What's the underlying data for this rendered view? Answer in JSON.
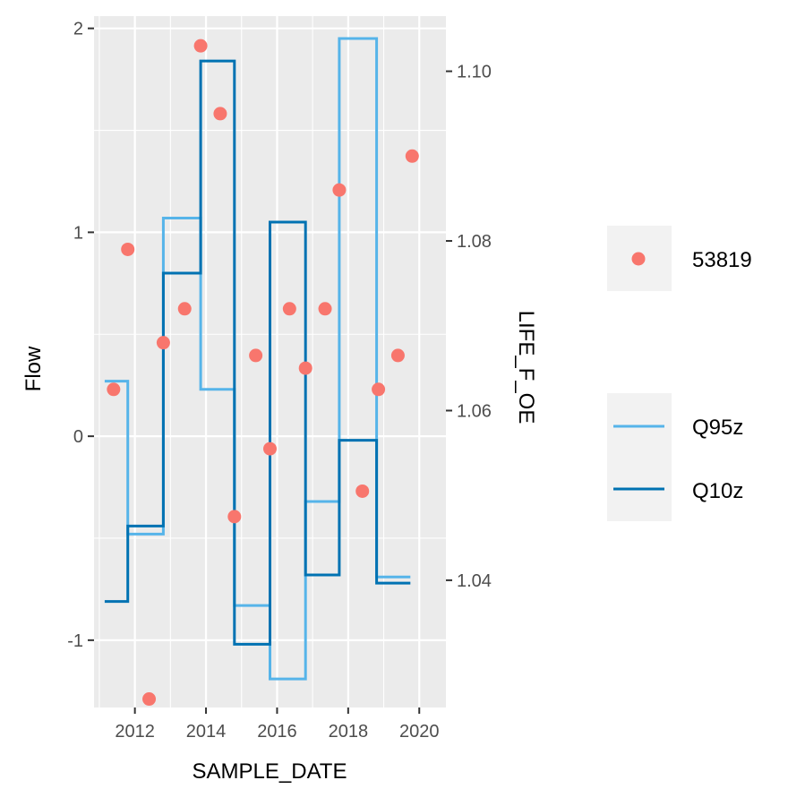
{
  "chart_data": {
    "type": "line",
    "xlabel": "SAMPLE_DATE",
    "ylabel_left": "Flow",
    "ylabel_right": "LIFE_F_OE",
    "x_ticks": [
      2012,
      2014,
      2016,
      2018,
      2020
    ],
    "xlim": [
      2010.85,
      2020.75
    ],
    "left_ylim": [
      -1.33,
      2.06
    ],
    "left_y_ticks": [
      -1,
      0,
      1,
      2
    ],
    "right_ylim": [
      1.025,
      1.1065
    ],
    "right_y_ticks": [
      "1.04",
      "1.06",
      "1.08",
      "1.10"
    ],
    "grid": true,
    "legend_placement": "right",
    "series": [
      {
        "name": "Q95z",
        "kind": "step",
        "color": "#56b4e9",
        "axis": "left",
        "x": [
          2011.15,
          2011.8,
          2012.8,
          2013.85,
          2014.8,
          2015.8,
          2016.8,
          2017.75,
          2018.8,
          2019.75
        ],
        "values": [
          0.27,
          -0.48,
          1.07,
          0.23,
          -0.83,
          -1.19,
          -0.32,
          1.95,
          -0.69,
          -0.69
        ]
      },
      {
        "name": "Q10z",
        "kind": "step",
        "color": "#0072b2",
        "axis": "left",
        "x": [
          2011.15,
          2011.8,
          2012.8,
          2013.85,
          2014.8,
          2015.8,
          2016.8,
          2017.75,
          2018.8,
          2019.75
        ],
        "values": [
          -0.81,
          -0.44,
          0.8,
          1.84,
          -1.02,
          1.05,
          -0.68,
          -0.02,
          -0.72,
          -0.72
        ]
      },
      {
        "name": "53819",
        "kind": "points",
        "color": "#f8766d",
        "axis": "right",
        "x": [
          2011.4,
          2011.8,
          2012.4,
          2012.8,
          2013.4,
          2013.85,
          2014.4,
          2014.8,
          2015.4,
          2015.8,
          2016.35,
          2016.8,
          2017.35,
          2017.75,
          2018.4,
          2018.85,
          2019.4,
          2019.8
        ],
        "values": [
          1.0625,
          1.079,
          1.026,
          1.068,
          1.072,
          1.103,
          1.095,
          1.0475,
          1.0665,
          1.0555,
          1.072,
          1.065,
          1.072,
          1.086,
          1.0505,
          1.0625,
          1.0665,
          1.09
        ]
      }
    ]
  },
  "legend": {
    "points_label": "53819",
    "lines": [
      {
        "label": "Q95z",
        "color": "#56b4e9"
      },
      {
        "label": "Q10z",
        "color": "#0072b2"
      }
    ]
  }
}
